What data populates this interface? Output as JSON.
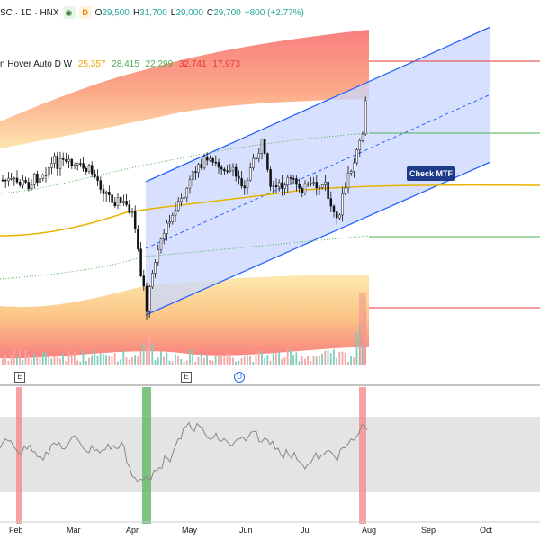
{
  "header": {
    "symbol": "SC · 1D · HNX",
    "eye_icon": "eye-icon",
    "d_badge": "D",
    "open_label": "O",
    "open_value": "29,500",
    "high_label": "H",
    "high_value": "31,700",
    "low_label": "L",
    "low_value": "29,000",
    "close_label": "C",
    "close_value": "29,700",
    "change": "+800 (+2.77%)"
  },
  "indicator": {
    "name": "n Hover Auto D W",
    "values": [
      "25,357",
      "28,415",
      "22,299",
      "32,741",
      "17,973"
    ],
    "colors": [
      "#f4a300",
      "#4caf50",
      "#4caf50",
      "#e53935",
      "#e53935"
    ]
  },
  "annotation": {
    "check_mtf": "Check MTF"
  },
  "x_axis": {
    "labels": [
      "Feb",
      "Mar",
      "Apr",
      "May",
      "Jun",
      "Jul",
      "Aug",
      "Sep",
      "Oct"
    ]
  },
  "markers": [
    "E",
    "E",
    "D"
  ],
  "colors": {
    "channel_fill": "#c9d7ff",
    "channel_line": "#2962ff",
    "band_upper": "#f87171",
    "band_lower": "#fcd34d",
    "ma_yellow": "#e6b400",
    "rsi_bg": "#e4e4e4",
    "highlight_red": "#f28b8b",
    "highlight_green": "#66bb6a"
  }
}
